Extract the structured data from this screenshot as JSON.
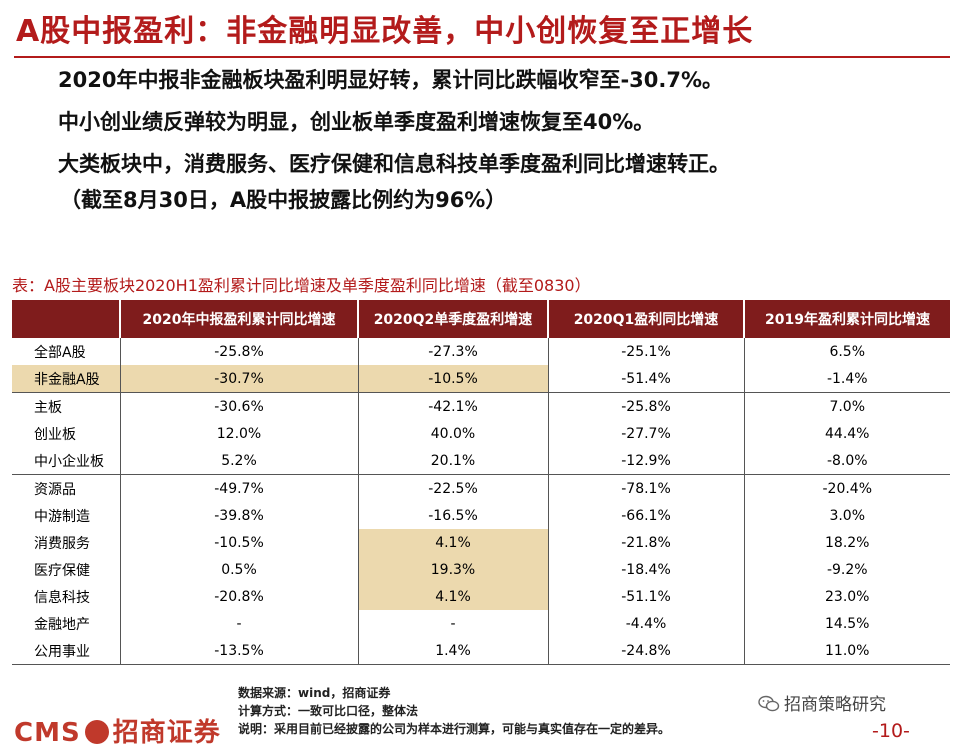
{
  "title": "A股中报盈利：非金融明显改善，中小创恢复至正增长",
  "bullets": [
    "2020年中报非金融板块盈利明显好转，累计同比跌幅收窄至-30.7%。",
    "中小创业绩反弹较为明显，创业板单季度盈利增速恢复至40%。",
    "大类板块中，消费服务、医疗保健和信息科技单季度盈利同比增速转正。",
    "（截至8月30日，A股中报披露比例约为96%）"
  ],
  "table": {
    "caption": "表：A股主要板块2020H1盈利累计同比增速及单季度盈利同比增速（截至0830）",
    "headers": [
      "",
      "2020年中报盈利累计同比增速",
      "2020Q2单季度盈利增速",
      "2020Q1盈利同比增速",
      "2019年盈利累计同比增速"
    ],
    "rows": [
      [
        "全部A股",
        "-25.8%",
        "-27.3%",
        "-25.1%",
        "6.5%"
      ],
      [
        "非金融A股",
        "-30.7%",
        "-10.5%",
        "-51.4%",
        "-1.4%"
      ],
      [
        "主板",
        "-30.6%",
        "-42.1%",
        "-25.8%",
        "7.0%"
      ],
      [
        "创业板",
        "12.0%",
        "40.0%",
        "-27.7%",
        "44.4%"
      ],
      [
        "中小企业板",
        "5.2%",
        "20.1%",
        "-12.9%",
        "-8.0%"
      ],
      [
        "资源品",
        "-49.7%",
        "-22.5%",
        "-78.1%",
        "-20.4%"
      ],
      [
        "中游制造",
        "-39.8%",
        "-16.5%",
        "-66.1%",
        "3.0%"
      ],
      [
        "消费服务",
        "-10.5%",
        "4.1%",
        "-21.8%",
        "18.2%"
      ],
      [
        "医疗保健",
        "0.5%",
        "19.3%",
        "-18.4%",
        "-9.2%"
      ],
      [
        "信息科技",
        "-20.8%",
        "4.1%",
        "-51.1%",
        "23.0%"
      ],
      [
        "金融地产",
        "-",
        "-",
        "-4.4%",
        "14.5%"
      ],
      [
        "公用事业",
        "-13.5%",
        "1.4%",
        "-24.8%",
        "11.0%"
      ]
    ]
  },
  "footnotes": [
    "数据来源：wind，招商证券",
    "计算方式：一致可比口径，整体法",
    "说明：采用目前已经披露的公司为样本进行测算，可能与真实值存在一定的差异。"
  ],
  "logo": {
    "left": "CMS",
    "right": "招商证券"
  },
  "wechat_name": "招商策略研究",
  "page_number": "-10-",
  "colors": {
    "accent": "#b31b1b",
    "header_bg": "#7f1c1c",
    "highlight": "#ecd9ae"
  },
  "icons": {
    "wechat": "wechat-icon"
  }
}
